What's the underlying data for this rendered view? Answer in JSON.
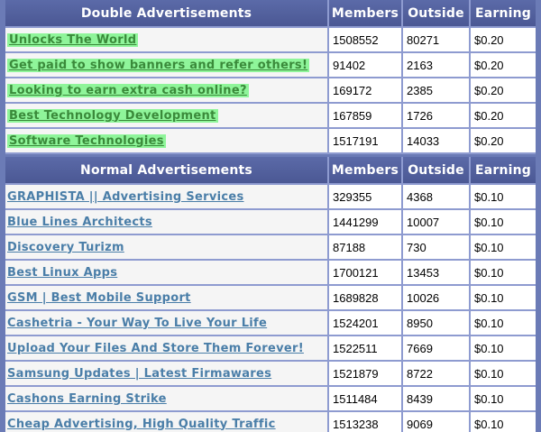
{
  "headers": {
    "double_title": "Double Advertisements",
    "normal_title": "Normal Advertisements",
    "members": "Members",
    "outside": "Outside",
    "earning": "Earning"
  },
  "colors": {
    "header_bg": "#4f5c99",
    "border": "#8e9bd0",
    "double_link_bg": "#8ff59a",
    "double_link_text": "#3a8a3a",
    "normal_link_text": "#4a7ea8"
  },
  "double_ads": [
    {
      "title": "Unlocks The World",
      "members": "1508552",
      "outside": "80271",
      "earning": "$0.20"
    },
    {
      "title": "Get paid to show banners and refer others!",
      "members": "91402",
      "outside": "2163",
      "earning": "$0.20"
    },
    {
      "title": "Looking to earn extra cash online?",
      "members": "169172",
      "outside": "2385",
      "earning": "$0.20"
    },
    {
      "title": "Best Technology Development",
      "members": "167859",
      "outside": "1726",
      "earning": "$0.20"
    },
    {
      "title": "Software Technologies",
      "members": "1517191",
      "outside": "14033",
      "earning": "$0.20"
    }
  ],
  "normal_ads": [
    {
      "title": "GRAPHISTA || Advertising Services",
      "members": "329355",
      "outside": "4368",
      "earning": "$0.10"
    },
    {
      "title": "Blue Lines Architects",
      "members": "1441299",
      "outside": "10007",
      "earning": "$0.10"
    },
    {
      "title": "Discovery Turizm",
      "members": "87188",
      "outside": "730",
      "earning": "$0.10"
    },
    {
      "title": "Best Linux Apps",
      "members": "1700121",
      "outside": "13453",
      "earning": "$0.10"
    },
    {
      "title": "GSM | Best Mobile Support",
      "members": "1689828",
      "outside": "10026",
      "earning": "$0.10"
    },
    {
      "title": "Cashetria - Your Way To Live Your Life",
      "members": "1524201",
      "outside": "8950",
      "earning": "$0.10"
    },
    {
      "title": "Upload Your Files And Store Them Forever!",
      "members": "1522511",
      "outside": "7669",
      "earning": "$0.10"
    },
    {
      "title": "Samsung Updates | Latest Firmawares",
      "members": "1521879",
      "outside": "8722",
      "earning": "$0.10"
    },
    {
      "title": "Cashons Earning Strike",
      "members": "1511484",
      "outside": "8439",
      "earning": "$0.10"
    },
    {
      "title": "Cheap Advertising, High Quality Traffic",
      "members": "1513238",
      "outside": "9069",
      "earning": "$0.10"
    }
  ]
}
